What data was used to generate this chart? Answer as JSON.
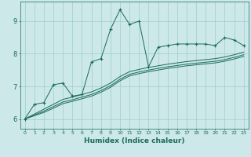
{
  "xlabel": "Humidex (Indice chaleur)",
  "ylabel": "",
  "bg_color": "#cce8e8",
  "grid_color": "#9ecece",
  "line_color": "#1a6b5a",
  "xlim": [
    -0.5,
    23.5
  ],
  "ylim": [
    5.7,
    9.6
  ],
  "yticks": [
    6,
    7,
    8,
    9
  ],
  "xticks": [
    0,
    1,
    2,
    3,
    4,
    5,
    6,
    7,
    8,
    9,
    10,
    11,
    12,
    13,
    14,
    15,
    16,
    17,
    18,
    19,
    20,
    21,
    22,
    23
  ],
  "series": [
    {
      "x": [
        0,
        1,
        2,
        3,
        4,
        5,
        6,
        7,
        8,
        9,
        10,
        11,
        12,
        13,
        14,
        15,
        16,
        17,
        18,
        19,
        20,
        21,
        22,
        23
      ],
      "y": [
        6.0,
        6.45,
        6.5,
        7.05,
        7.1,
        6.7,
        6.75,
        7.75,
        7.85,
        8.75,
        9.35,
        8.9,
        9.0,
        7.6,
        8.2,
        8.25,
        8.3,
        8.3,
        8.3,
        8.3,
        8.25,
        8.5,
        8.42,
        8.25
      ],
      "marker": "+"
    },
    {
      "x": [
        0,
        1,
        2,
        3,
        4,
        5,
        6,
        7,
        8,
        9,
        10,
        11,
        12,
        13,
        14,
        15,
        16,
        17,
        18,
        19,
        20,
        21,
        22,
        23
      ],
      "y": [
        6.0,
        6.15,
        6.3,
        6.45,
        6.6,
        6.67,
        6.75,
        6.83,
        6.95,
        7.1,
        7.3,
        7.45,
        7.52,
        7.58,
        7.63,
        7.68,
        7.72,
        7.76,
        7.79,
        7.82,
        7.85,
        7.9,
        7.97,
        8.05
      ],
      "marker": null
    },
    {
      "x": [
        0,
        1,
        2,
        3,
        4,
        5,
        6,
        7,
        8,
        9,
        10,
        11,
        12,
        13,
        14,
        15,
        16,
        17,
        18,
        19,
        20,
        21,
        22,
        23
      ],
      "y": [
        6.0,
        6.12,
        6.24,
        6.38,
        6.52,
        6.59,
        6.67,
        6.75,
        6.87,
        7.02,
        7.22,
        7.37,
        7.44,
        7.5,
        7.55,
        7.6,
        7.64,
        7.68,
        7.71,
        7.74,
        7.77,
        7.82,
        7.89,
        7.97
      ],
      "marker": null
    },
    {
      "x": [
        0,
        1,
        2,
        3,
        4,
        5,
        6,
        7,
        8,
        9,
        10,
        11,
        12,
        13,
        14,
        15,
        16,
        17,
        18,
        19,
        20,
        21,
        22,
        23
      ],
      "y": [
        6.0,
        6.1,
        6.2,
        6.33,
        6.47,
        6.54,
        6.62,
        6.7,
        6.82,
        6.97,
        7.17,
        7.32,
        7.39,
        7.45,
        7.5,
        7.55,
        7.59,
        7.63,
        7.66,
        7.69,
        7.72,
        7.77,
        7.84,
        7.92
      ],
      "marker": null
    }
  ]
}
